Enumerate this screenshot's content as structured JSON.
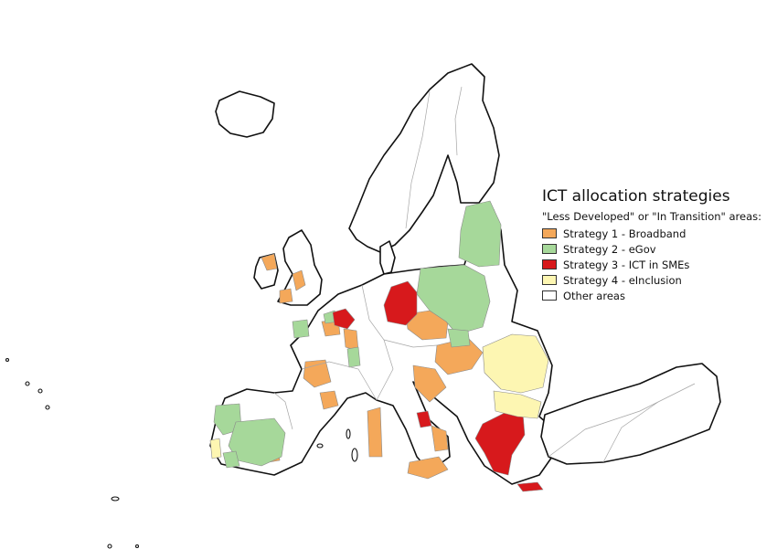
{
  "legend": {
    "title": "ICT allocation strategies",
    "subtitle": "\"Less Developed\" or \"In Transition\" areas:",
    "items": [
      {
        "label": "Strategy 1 - Broadband",
        "color": "#f4a85a"
      },
      {
        "label": "Strategy 2 - eGov",
        "color": "#a6d89a"
      },
      {
        "label": "Strategy 3 - ICT in SMEs",
        "color": "#d7191c"
      },
      {
        "label": "Strategy 4 - eInclusion",
        "color": "#fdf6b2"
      },
      {
        "label": "Other areas",
        "color": "#ffffff"
      }
    ]
  },
  "map": {
    "land_color": "#ffffff",
    "outline_color": "#111111"
  }
}
